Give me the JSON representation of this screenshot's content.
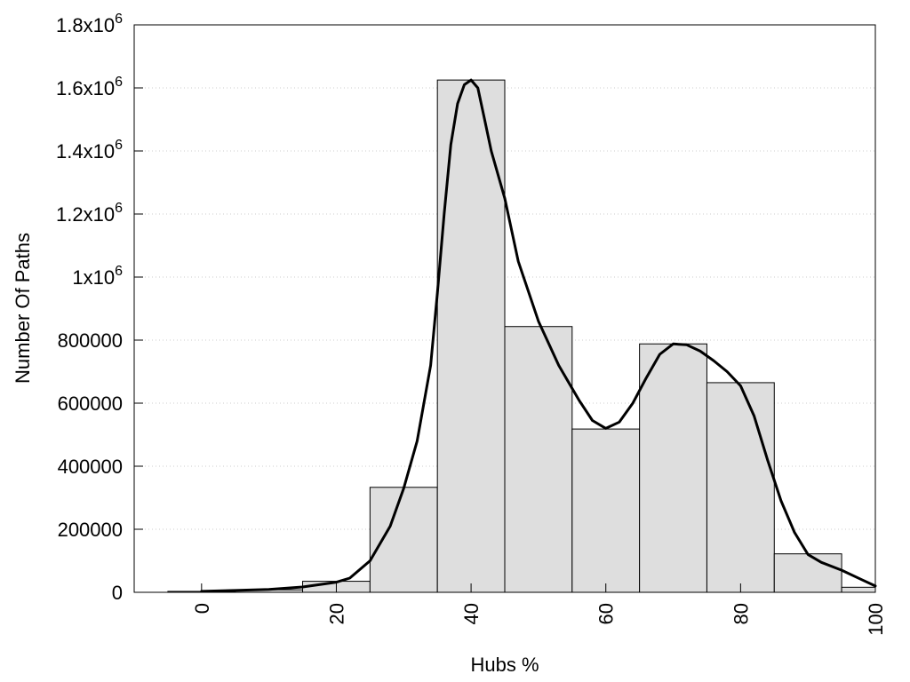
{
  "chart_data": {
    "type": "bar",
    "title": "",
    "xlabel": "Hubs %",
    "ylabel": "Number Of Paths",
    "xlim": [
      -10,
      100
    ],
    "ylim": [
      0,
      1800000
    ],
    "grid": "horizontal-dotted",
    "x_ticks": [
      {
        "value": 0,
        "label": "0"
      },
      {
        "value": 20,
        "label": "20"
      },
      {
        "value": 40,
        "label": "40"
      },
      {
        "value": 60,
        "label": "60"
      },
      {
        "value": 80,
        "label": "80"
      },
      {
        "value": 100,
        "label": "100"
      }
    ],
    "y_ticks": [
      {
        "value": 0,
        "base": "0",
        "exp": ""
      },
      {
        "value": 200000,
        "base": "200000",
        "exp": ""
      },
      {
        "value": 400000,
        "base": "400000",
        "exp": ""
      },
      {
        "value": 600000,
        "base": "600000",
        "exp": ""
      },
      {
        "value": 800000,
        "base": "800000",
        "exp": ""
      },
      {
        "value": 1000000,
        "base": "1x10",
        "exp": "6"
      },
      {
        "value": 1200000,
        "base": "1.2x10",
        "exp": "6"
      },
      {
        "value": 1400000,
        "base": "1.4x10",
        "exp": "6"
      },
      {
        "value": 1600000,
        "base": "1.6x10",
        "exp": "6"
      },
      {
        "value": 1800000,
        "base": "1.8x10",
        "exp": "6"
      }
    ],
    "bin_width": 10,
    "bins": [
      {
        "x": 0,
        "value": 3000
      },
      {
        "x": 10,
        "value": 8000
      },
      {
        "x": 20,
        "value": 35000
      },
      {
        "x": 30,
        "value": 333000
      },
      {
        "x": 40,
        "value": 1625000
      },
      {
        "x": 50,
        "value": 843000
      },
      {
        "x": 60,
        "value": 518000
      },
      {
        "x": 70,
        "value": 788000
      },
      {
        "x": 80,
        "value": 665000
      },
      {
        "x": 90,
        "value": 122000
      },
      {
        "x": 100,
        "value": 16000
      }
    ],
    "curve": [
      [
        0,
        3000
      ],
      [
        5,
        6000
      ],
      [
        10,
        9000
      ],
      [
        15,
        17000
      ],
      [
        20,
        32000
      ],
      [
        22,
        45000
      ],
      [
        25,
        100000
      ],
      [
        28,
        210000
      ],
      [
        30,
        330000
      ],
      [
        32,
        480000
      ],
      [
        34,
        720000
      ],
      [
        35,
        950000
      ],
      [
        36,
        1200000
      ],
      [
        37,
        1420000
      ],
      [
        38,
        1550000
      ],
      [
        39,
        1610000
      ],
      [
        40,
        1625000
      ],
      [
        41,
        1600000
      ],
      [
        42,
        1500000
      ],
      [
        43,
        1400000
      ],
      [
        45,
        1250000
      ],
      [
        47,
        1050000
      ],
      [
        50,
        860000
      ],
      [
        53,
        720000
      ],
      [
        56,
        610000
      ],
      [
        58,
        545000
      ],
      [
        60,
        520000
      ],
      [
        62,
        540000
      ],
      [
        64,
        600000
      ],
      [
        66,
        680000
      ],
      [
        68,
        755000
      ],
      [
        70,
        788000
      ],
      [
        72,
        785000
      ],
      [
        74,
        765000
      ],
      [
        76,
        735000
      ],
      [
        78,
        700000
      ],
      [
        80,
        655000
      ],
      [
        82,
        560000
      ],
      [
        84,
        420000
      ],
      [
        86,
        290000
      ],
      [
        88,
        190000
      ],
      [
        90,
        120000
      ],
      [
        92,
        95000
      ],
      [
        95,
        70000
      ],
      [
        98,
        40000
      ],
      [
        100,
        20000
      ]
    ],
    "colors": {
      "bar_fill": "#dedede",
      "bar_stroke": "#000000",
      "curve": "#000000",
      "grid": "#cccccc",
      "axis": "#000000"
    }
  }
}
